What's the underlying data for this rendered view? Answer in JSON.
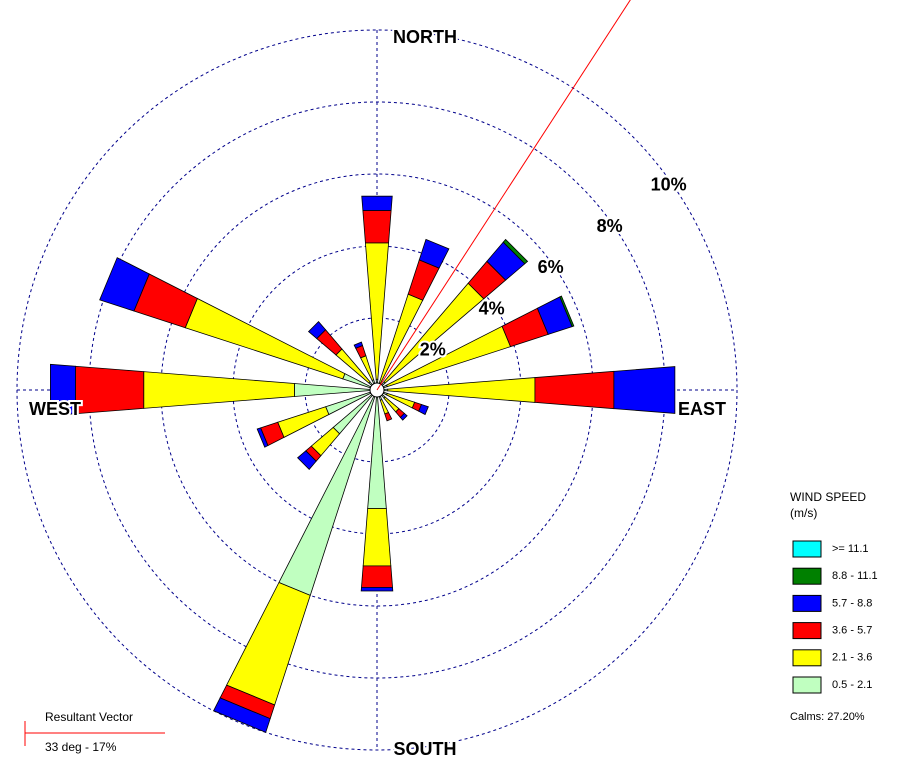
{
  "chart_data": {
    "type": "windrose",
    "directions": [
      0,
      22.5,
      45,
      67.5,
      90,
      112.5,
      135,
      157.5,
      180,
      202.5,
      225,
      247.5,
      270,
      292.5,
      315,
      337.5
    ],
    "axis_labels": [
      "NORTH",
      "EAST",
      "SOUTH",
      "WEST"
    ],
    "rlim": [
      0,
      10
    ],
    "rticks": [
      {
        "value": 2,
        "label": "2%"
      },
      {
        "value": 4,
        "label": "4%"
      },
      {
        "value": 6,
        "label": "6%"
      },
      {
        "value": 8,
        "label": "8%"
      },
      {
        "value": 10,
        "label": "10%"
      }
    ],
    "legend_title": "WIND SPEED",
    "legend_unit": "(m/s)",
    "series": [
      {
        "name": "0.5 - 2.1",
        "color": "#c0ffc0",
        "values": [
          0.3,
          0.2,
          0.3,
          0.3,
          0.3,
          0.3,
          0.3,
          0.3,
          3.3,
          6.0,
          1.6,
          1.5,
          2.3,
          1.0,
          0.3,
          0.3
        ]
      },
      {
        "name": "2.1 - 3.6",
        "color": "#ffff00",
        "values": [
          3.8,
          2.6,
          3.6,
          3.6,
          4.1,
          0.8,
          0.5,
          0.4,
          1.6,
          3.2,
          0.8,
          1.4,
          4.2,
          4.6,
          1.2,
          0.7
        ]
      },
      {
        "name": "3.6 - 5.7",
        "color": "#ff0000",
        "values": [
          0.9,
          1.0,
          0.8,
          1.1,
          2.2,
          0.2,
          0.2,
          0.2,
          0.6,
          0.4,
          0.2,
          0.5,
          1.9,
          1.5,
          0.7,
          0.3
        ]
      },
      {
        "name": "5.7 - 8.8",
        "color": "#0000ff",
        "values": [
          0.4,
          0.6,
          0.7,
          0.7,
          1.7,
          0.2,
          0.1,
          0,
          0.1,
          0.4,
          0.3,
          0.1,
          0.7,
          1.0,
          0.3,
          0.1
        ]
      },
      {
        "name": "8.8 - 11.1",
        "color": "#008000",
        "values": [
          0,
          0,
          0.1,
          0.05,
          0,
          0,
          0,
          0,
          0,
          0,
          0,
          0,
          0,
          0,
          0,
          0
        ]
      },
      {
        "name": ">= 11.1",
        "color": "#00ffff",
        "values": [
          0,
          0,
          0,
          0,
          0,
          0,
          0,
          0,
          0,
          0,
          0,
          0,
          0,
          0,
          0,
          0
        ]
      }
    ],
    "calms": "Calms: 27.20%",
    "resultant": {
      "title": "Resultant Vector",
      "direction": 33,
      "percent": 17,
      "label": "33 deg - 17%"
    }
  }
}
